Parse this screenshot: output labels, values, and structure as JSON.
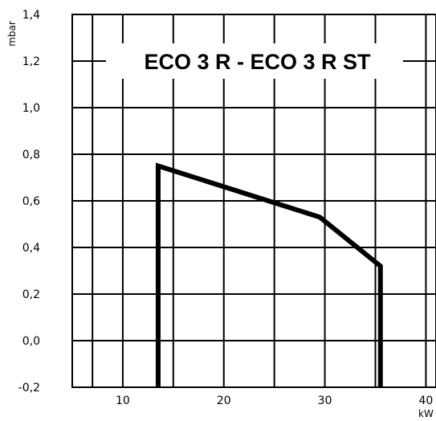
{
  "chart_data": {
    "type": "line",
    "title": "ECO 3 R - ECO 3 R ST",
    "xlabel": "kW",
    "ylabel": "mbar",
    "xlim": [
      5,
      41
    ],
    "ylim": [
      -0.2,
      1.4
    ],
    "x_ticks": [
      10,
      20,
      30,
      40
    ],
    "x_tick_labels": [
      "10",
      "20",
      "30",
      "40"
    ],
    "y_ticks": [
      1.4,
      1.2,
      1.0,
      0.8,
      0.6,
      0.4,
      0.2,
      0.0,
      -0.2
    ],
    "y_tick_labels": [
      "1,4",
      "1,2",
      "1,0",
      "0,8",
      "0,6",
      "0,4",
      "0,2",
      "0,0",
      "-0,2"
    ],
    "grid": true,
    "series": [
      {
        "x": [
          13.5,
          13.5,
          29.5,
          35.5,
          35.5
        ],
        "y": [
          -0.2,
          0.75,
          0.53,
          0.32,
          -0.2
        ],
        "color": "#000000"
      }
    ]
  }
}
